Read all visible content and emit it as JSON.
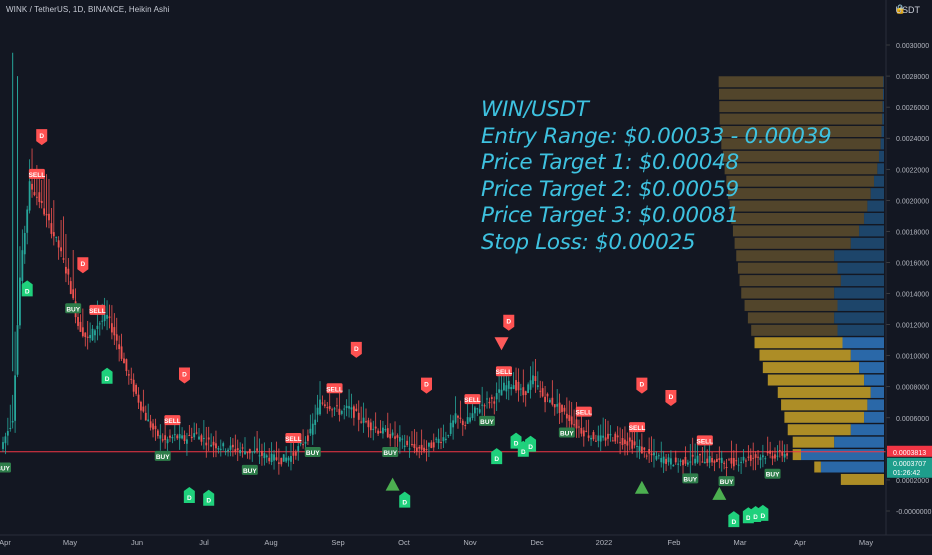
{
  "header": {
    "symbol_line": "WINK / TetherUS, 1D, BINANCE, Heikin Ashi",
    "unit_label": "USDT"
  },
  "annotation": {
    "lines": [
      "WIN/USDT",
      "Entry Range: $0.00033 - 0.00039",
      "Price Target 1: $0.00048",
      "Price Target 2: $0.00059",
      "Price Target 3: $0.00081",
      "Stop Loss: $0.00025"
    ],
    "color": "#3ec2e0"
  },
  "price_badges": {
    "current_line": "0.0003813",
    "last_price": "0.0003707",
    "countdown": "01:26:42"
  },
  "colors": {
    "background": "#131722",
    "up": "#26a69a",
    "down": "#ef5350",
    "profile_yellow": "#c9a227",
    "profile_blue": "#2f77bf",
    "profile_olive": "#5a4a2c",
    "hline": "#f23645",
    "signal_green": "#1fd17c",
    "signal_red": "#ff5252",
    "triangle_green": "#4caf50",
    "triangle_red": "#ff5b5b"
  },
  "chart_data": {
    "type": "candlestick",
    "title": "WINK / TetherUS, 1D, BINANCE, Heikin Ashi",
    "y_axis": {
      "unit": "USDT",
      "range": [
        -0.0001,
        0.0031
      ],
      "ticks": [
        "0.0030000",
        "0.0028000",
        "0.0026000",
        "0.0024000",
        "0.0022000",
        "0.0020000",
        "0.0018000",
        "0.0016000",
        "0.0014000",
        "0.0012000",
        "0.0010000",
        "0.0008000",
        "0.0006000",
        "0.0004000",
        "0.0002000",
        "-0.0000000"
      ]
    },
    "x_axis": {
      "ticks": [
        "Apr",
        "May",
        "Jun",
        "Jul",
        "Aug",
        "Sep",
        "Oct",
        "Nov",
        "Dec",
        "2022",
        "Feb",
        "Mar",
        "Apr",
        "May"
      ]
    },
    "price_path": [
      {
        "d": 0,
        "v": 0.0004
      },
      {
        "d": 5,
        "v": 0.0006
      },
      {
        "d": 8,
        "v": 0.0015
      },
      {
        "d": 12,
        "v": 0.0021
      },
      {
        "d": 16,
        "v": 0.002
      },
      {
        "d": 20,
        "v": 0.00185
      },
      {
        "d": 24,
        "v": 0.0017
      },
      {
        "d": 28,
        "v": 0.0015
      },
      {
        "d": 32,
        "v": 0.0012
      },
      {
        "d": 36,
        "v": 0.0011
      },
      {
        "d": 40,
        "v": 0.0012
      },
      {
        "d": 44,
        "v": 0.00125
      },
      {
        "d": 48,
        "v": 0.0011
      },
      {
        "d": 52,
        "v": 0.0009
      },
      {
        "d": 56,
        "v": 0.00075
      },
      {
        "d": 60,
        "v": 0.0006
      },
      {
        "d": 64,
        "v": 0.0005
      },
      {
        "d": 68,
        "v": 0.00045
      },
      {
        "d": 72,
        "v": 0.00048
      },
      {
        "d": 76,
        "v": 0.00046
      },
      {
        "d": 80,
        "v": 0.0005
      },
      {
        "d": 84,
        "v": 0.00046
      },
      {
        "d": 88,
        "v": 0.00043
      },
      {
        "d": 92,
        "v": 0.00041
      },
      {
        "d": 96,
        "v": 0.0004
      },
      {
        "d": 100,
        "v": 0.00039
      },
      {
        "d": 104,
        "v": 0.00038
      },
      {
        "d": 108,
        "v": 0.00036
      },
      {
        "d": 112,
        "v": 0.00034
      },
      {
        "d": 116,
        "v": 0.00033
      },
      {
        "d": 120,
        "v": 0.00035
      },
      {
        "d": 124,
        "v": 0.00042
      },
      {
        "d": 128,
        "v": 0.0005
      },
      {
        "d": 132,
        "v": 0.0007
      },
      {
        "d": 136,
        "v": 0.00068
      },
      {
        "d": 140,
        "v": 0.00064
      },
      {
        "d": 144,
        "v": 0.00066
      },
      {
        "d": 148,
        "v": 0.0006
      },
      {
        "d": 152,
        "v": 0.00056
      },
      {
        "d": 156,
        "v": 0.00052
      },
      {
        "d": 160,
        "v": 0.0005
      },
      {
        "d": 164,
        "v": 0.00046
      },
      {
        "d": 168,
        "v": 0.00042
      },
      {
        "d": 172,
        "v": 0.0004
      },
      {
        "d": 176,
        "v": 0.0004
      },
      {
        "d": 180,
        "v": 0.00045
      },
      {
        "d": 184,
        "v": 0.00048
      },
      {
        "d": 188,
        "v": 0.0006
      },
      {
        "d": 192,
        "v": 0.00056
      },
      {
        "d": 196,
        "v": 0.00064
      },
      {
        "d": 200,
        "v": 0.0007
      },
      {
        "d": 204,
        "v": 0.00072
      },
      {
        "d": 208,
        "v": 0.0008
      },
      {
        "d": 212,
        "v": 0.00082
      },
      {
        "d": 216,
        "v": 0.00075
      },
      {
        "d": 220,
        "v": 0.00085
      },
      {
        "d": 224,
        "v": 0.00074
      },
      {
        "d": 228,
        "v": 0.0007
      },
      {
        "d": 232,
        "v": 0.00064
      },
      {
        "d": 236,
        "v": 0.00058
      },
      {
        "d": 240,
        "v": 0.00052
      },
      {
        "d": 244,
        "v": 0.00048
      },
      {
        "d": 248,
        "v": 0.00046
      },
      {
        "d": 252,
        "v": 0.00048
      },
      {
        "d": 256,
        "v": 0.00046
      },
      {
        "d": 260,
        "v": 0.00044
      },
      {
        "d": 264,
        "v": 0.0004
      },
      {
        "d": 268,
        "v": 0.00036
      },
      {
        "d": 272,
        "v": 0.00034
      },
      {
        "d": 276,
        "v": 0.00032
      },
      {
        "d": 280,
        "v": 0.00031
      },
      {
        "d": 284,
        "v": 0.00033
      },
      {
        "d": 288,
        "v": 0.00034
      },
      {
        "d": 292,
        "v": 0.00033
      },
      {
        "d": 296,
        "v": 0.00032
      },
      {
        "d": 300,
        "v": 0.00031
      },
      {
        "d": 304,
        "v": 0.00032
      },
      {
        "d": 308,
        "v": 0.00034
      },
      {
        "d": 312,
        "v": 0.00035
      },
      {
        "d": 316,
        "v": 0.00036
      },
      {
        "d": 320,
        "v": 0.00036
      },
      {
        "d": 324,
        "v": 0.00037
      }
    ],
    "horizontal_line": 0.0003813,
    "last_price": 0.0003707,
    "volume_profile": [
      {
        "price": 0.0002,
        "left": 0.0,
        "right": 0.26,
        "type": "mixed"
      },
      {
        "price": 0.00028,
        "left": 0.38,
        "right": 0.42,
        "type": "mixed"
      },
      {
        "price": 0.00036,
        "left": 0.5,
        "right": 0.55,
        "type": "mixed"
      },
      {
        "price": 0.00044,
        "left": 0.3,
        "right": 0.55,
        "type": "mixed"
      },
      {
        "price": 0.00052,
        "left": 0.2,
        "right": 0.58,
        "type": "mixed"
      },
      {
        "price": 0.0006,
        "left": 0.12,
        "right": 0.6,
        "type": "mixed"
      },
      {
        "price": 0.00068,
        "left": 0.1,
        "right": 0.62,
        "type": "mixed"
      },
      {
        "price": 0.00076,
        "left": 0.08,
        "right": 0.64,
        "type": "mixed"
      },
      {
        "price": 0.00084,
        "left": 0.12,
        "right": 0.7,
        "type": "mixed"
      },
      {
        "price": 0.00092,
        "left": 0.15,
        "right": 0.73,
        "type": "mixed"
      },
      {
        "price": 0.001,
        "left": 0.2,
        "right": 0.75,
        "type": "mixed"
      },
      {
        "price": 0.00108,
        "left": 0.25,
        "right": 0.78,
        "type": "mixed"
      },
      {
        "price": 0.00116,
        "left": 0.28,
        "right": 0.8,
        "type": "olive"
      },
      {
        "price": 0.00124,
        "left": 0.3,
        "right": 0.82,
        "type": "olive"
      },
      {
        "price": 0.00132,
        "left": 0.28,
        "right": 0.84,
        "type": "olive"
      },
      {
        "price": 0.0014,
        "left": 0.3,
        "right": 0.86,
        "type": "olive"
      },
      {
        "price": 0.00148,
        "left": 0.26,
        "right": 0.87,
        "type": "olive"
      },
      {
        "price": 0.00156,
        "left": 0.28,
        "right": 0.88,
        "type": "olive"
      },
      {
        "price": 0.00164,
        "left": 0.3,
        "right": 0.89,
        "type": "olive"
      },
      {
        "price": 0.00172,
        "left": 0.2,
        "right": 0.9,
        "type": "olive"
      },
      {
        "price": 0.0018,
        "left": 0.15,
        "right": 0.91,
        "type": "olive"
      },
      {
        "price": 0.00188,
        "left": 0.12,
        "right": 0.92,
        "type": "olive"
      },
      {
        "price": 0.00196,
        "left": 0.1,
        "right": 0.93,
        "type": "olive"
      },
      {
        "price": 0.00204,
        "left": 0.08,
        "right": 0.94,
        "type": "olive"
      },
      {
        "price": 0.00212,
        "left": 0.06,
        "right": 0.95,
        "type": "olive"
      },
      {
        "price": 0.0022,
        "left": 0.04,
        "right": 0.96,
        "type": "olive"
      },
      {
        "price": 0.00228,
        "left": 0.03,
        "right": 0.97,
        "type": "olive"
      },
      {
        "price": 0.00236,
        "left": 0.02,
        "right": 0.98,
        "type": "olive"
      },
      {
        "price": 0.00244,
        "left": 0.015,
        "right": 0.985,
        "type": "olive"
      },
      {
        "price": 0.00252,
        "left": 0.01,
        "right": 0.99,
        "type": "olive"
      },
      {
        "price": 0.0026,
        "left": 0.008,
        "right": 0.992,
        "type": "olive"
      },
      {
        "price": 0.00268,
        "left": 0.006,
        "right": 0.994,
        "type": "olive"
      },
      {
        "price": 0.00276,
        "left": 0.004,
        "right": 0.996,
        "type": "olive"
      }
    ],
    "signals": [
      {
        "day": 0,
        "text": "BUY",
        "kind": "buy-label"
      },
      {
        "day": 10,
        "text": "D",
        "kind": "buy-flag"
      },
      {
        "day": 14,
        "text": "SELL",
        "kind": "sell-label"
      },
      {
        "day": 16,
        "text": "D",
        "kind": "sell-flag"
      },
      {
        "day": 33,
        "text": "D",
        "kind": "sell-flag"
      },
      {
        "day": 29,
        "text": "BUY",
        "kind": "buy-label"
      },
      {
        "day": 39,
        "text": "SELL",
        "kind": "sell-label"
      },
      {
        "day": 43,
        "text": "D",
        "kind": "buy-flag"
      },
      {
        "day": 70,
        "text": "SELL",
        "kind": "sell-label"
      },
      {
        "day": 66,
        "text": "BUY",
        "kind": "buy-label"
      },
      {
        "day": 75,
        "text": "D",
        "kind": "sell-flag"
      },
      {
        "day": 77,
        "text": "D",
        "kind": "buy-flag"
      },
      {
        "day": 85,
        "text": "D",
        "kind": "buy-flag"
      },
      {
        "day": 102,
        "text": "BUY",
        "kind": "buy-label"
      },
      {
        "day": 120,
        "text": "SELL",
        "kind": "sell-label"
      },
      {
        "day": 128,
        "text": "BUY",
        "kind": "buy-label"
      },
      {
        "day": 137,
        "text": "SELL",
        "kind": "sell-label"
      },
      {
        "day": 146,
        "text": "D",
        "kind": "sell-flag"
      },
      {
        "day": 160,
        "text": "BUY",
        "kind": "buy-label"
      },
      {
        "day": 166,
        "text": "D",
        "kind": "buy-flag"
      },
      {
        "day": 175,
        "text": "D",
        "kind": "sell-flag"
      },
      {
        "day": 194,
        "text": "SELL",
        "kind": "sell-label"
      },
      {
        "day": 200,
        "text": "BUY",
        "kind": "buy-label"
      },
      {
        "day": 207,
        "text": "SELL",
        "kind": "sell-label"
      },
      {
        "day": 209,
        "text": "D",
        "kind": "sell-flag"
      },
      {
        "day": 204,
        "text": "D",
        "kind": "buy-flag"
      },
      {
        "day": 212,
        "text": "D",
        "kind": "buy-flag"
      },
      {
        "day": 215,
        "text": "D",
        "kind": "buy-flag"
      },
      {
        "day": 218,
        "text": "D",
        "kind": "buy-flag"
      },
      {
        "day": 233,
        "text": "BUY",
        "kind": "buy-label"
      },
      {
        "day": 240,
        "text": "SELL",
        "kind": "sell-label"
      },
      {
        "day": 262,
        "text": "SELL",
        "kind": "sell-label"
      },
      {
        "day": 264,
        "text": "D",
        "kind": "sell-flag"
      },
      {
        "day": 276,
        "text": "D",
        "kind": "sell-flag"
      },
      {
        "day": 284,
        "text": "BUY",
        "kind": "buy-label"
      },
      {
        "day": 290,
        "text": "SELL",
        "kind": "sell-label"
      },
      {
        "day": 299,
        "text": "BUY",
        "kind": "buy-label"
      },
      {
        "day": 302,
        "text": "D",
        "kind": "buy-flag"
      },
      {
        "day": 308,
        "text": "D",
        "kind": "buy-flag"
      },
      {
        "day": 311,
        "text": "D",
        "kind": "buy-flag"
      },
      {
        "day": 314,
        "text": "D",
        "kind": "buy-flag"
      },
      {
        "day": 318,
        "text": "BUY",
        "kind": "buy-label"
      }
    ],
    "triangles": [
      {
        "day": 161,
        "dir": "up",
        "value": 0.00017
      },
      {
        "day": 206,
        "dir": "down",
        "value": 0.00108
      },
      {
        "day": 264,
        "dir": "up",
        "value": 0.00015
      },
      {
        "day": 296,
        "dir": "up",
        "value": 0.00011
      }
    ]
  }
}
